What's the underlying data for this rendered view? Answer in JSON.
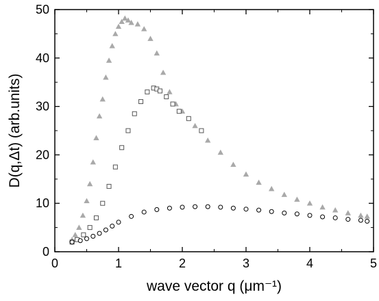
{
  "chart_data": {
    "type": "scatter",
    "title": "",
    "xlabel": "wave vector q (μm⁻¹)",
    "ylabel": "D(q,Δt)  (arb.units)",
    "xlim": [
      0,
      5
    ],
    "ylim": [
      0,
      50
    ],
    "x_ticks": [
      "0",
      "1",
      "2",
      "3",
      "4",
      "5"
    ],
    "y_ticks": [
      "0",
      "10",
      "20",
      "30",
      "40",
      "50"
    ],
    "grid": false,
    "legend": "none",
    "colors": {
      "gray": "#a9a9a9",
      "black": "#000000"
    },
    "series": [
      {
        "marker": "filled-triangle",
        "color": "#a9a9a9",
        "points": [
          [
            0.27,
            2.5
          ],
          [
            0.32,
            3.5
          ],
          [
            0.38,
            5.0
          ],
          [
            0.44,
            7.5
          ],
          [
            0.5,
            10.5
          ],
          [
            0.55,
            14.0
          ],
          [
            0.6,
            18.5
          ],
          [
            0.65,
            23.5
          ],
          [
            0.7,
            28.0
          ],
          [
            0.75,
            31.5
          ],
          [
            0.8,
            36.0
          ],
          [
            0.85,
            39.5
          ],
          [
            0.9,
            42.5
          ],
          [
            0.95,
            45.0
          ],
          [
            1.0,
            46.5
          ],
          [
            1.05,
            47.5
          ],
          [
            1.1,
            48.2
          ],
          [
            1.15,
            47.8
          ],
          [
            1.2,
            47.3
          ],
          [
            1.3,
            47.0
          ],
          [
            1.4,
            46.0
          ],
          [
            1.5,
            44.0
          ],
          [
            1.6,
            41.0
          ],
          [
            1.7,
            37.0
          ],
          [
            1.8,
            33.0
          ],
          [
            1.9,
            30.5
          ],
          [
            2.0,
            29.0
          ],
          [
            2.2,
            26.0
          ],
          [
            2.4,
            23.0
          ],
          [
            2.6,
            20.5
          ],
          [
            2.8,
            18.0
          ],
          [
            3.0,
            16.0
          ],
          [
            3.2,
            14.3
          ],
          [
            3.4,
            13.0
          ],
          [
            3.6,
            11.8
          ],
          [
            3.8,
            10.8
          ],
          [
            4.0,
            10.0
          ],
          [
            4.2,
            9.2
          ],
          [
            4.4,
            8.6
          ],
          [
            4.6,
            8.0
          ],
          [
            4.8,
            7.5
          ],
          [
            4.9,
            7.3
          ]
        ]
      },
      {
        "marker": "open-square",
        "color": "#555555",
        "points": [
          [
            0.27,
            2.0
          ],
          [
            0.35,
            2.5
          ],
          [
            0.45,
            3.5
          ],
          [
            0.55,
            5.0
          ],
          [
            0.65,
            7.0
          ],
          [
            0.75,
            10.0
          ],
          [
            0.85,
            13.5
          ],
          [
            0.95,
            17.5
          ],
          [
            1.05,
            21.5
          ],
          [
            1.15,
            25.0
          ],
          [
            1.25,
            28.5
          ],
          [
            1.35,
            31.0
          ],
          [
            1.45,
            33.0
          ],
          [
            1.55,
            33.8
          ],
          [
            1.6,
            33.6
          ],
          [
            1.65,
            33.2
          ],
          [
            1.75,
            32.0
          ],
          [
            1.85,
            30.5
          ],
          [
            1.95,
            29.0
          ],
          [
            2.1,
            27.5
          ],
          [
            2.3,
            25.0
          ]
        ]
      },
      {
        "marker": "open-circle",
        "color": "#000000",
        "points": [
          [
            0.27,
            2.0
          ],
          [
            0.4,
            2.3
          ],
          [
            0.5,
            2.7
          ],
          [
            0.6,
            3.2
          ],
          [
            0.7,
            3.8
          ],
          [
            0.8,
            4.5
          ],
          [
            0.9,
            5.3
          ],
          [
            1.0,
            6.1
          ],
          [
            1.2,
            7.3
          ],
          [
            1.4,
            8.2
          ],
          [
            1.6,
            8.7
          ],
          [
            1.8,
            9.0
          ],
          [
            2.0,
            9.2
          ],
          [
            2.2,
            9.3
          ],
          [
            2.4,
            9.3
          ],
          [
            2.6,
            9.2
          ],
          [
            2.8,
            9.0
          ],
          [
            3.0,
            8.8
          ],
          [
            3.2,
            8.6
          ],
          [
            3.4,
            8.3
          ],
          [
            3.6,
            8.0
          ],
          [
            3.8,
            7.8
          ],
          [
            4.0,
            7.5
          ],
          [
            4.2,
            7.2
          ],
          [
            4.4,
            7.0
          ],
          [
            4.6,
            6.7
          ],
          [
            4.8,
            6.5
          ],
          [
            4.9,
            6.3
          ]
        ]
      }
    ]
  }
}
